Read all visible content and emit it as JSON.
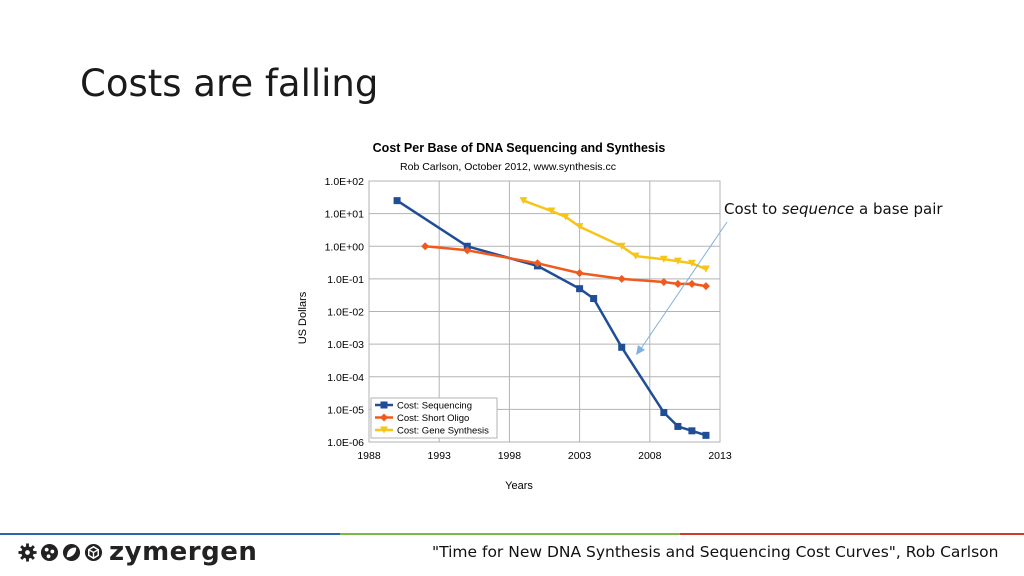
{
  "slide": {
    "title": "Costs are falling",
    "callout": {
      "prefix": "Cost to ",
      "emphasis": "sequence",
      "suffix": " a base pair"
    },
    "citation": "\"Time for New DNA Synthesis and Sequencing Cost Curves\", Rob Carlson",
    "logo": {
      "text": "zymergen",
      "icons": [
        "gear-icon",
        "molecule-icon",
        "leaf-icon",
        "cube-icon"
      ]
    },
    "footer_colors": [
      "#2a66b0",
      "#7ab648",
      "#d23a2a"
    ]
  },
  "chart_data": {
    "type": "line",
    "title": "Cost Per Base of DNA Sequencing and Synthesis",
    "subtitle": "Rob Carlson, October 2012, www.synthesis.cc",
    "xlabel": "Years",
    "ylabel": "US Dollars",
    "xlim": [
      1988,
      2013
    ],
    "xticks": [
      "1988",
      "1993",
      "1998",
      "2003",
      "2008",
      "2013"
    ],
    "yscale": "log",
    "ylim": [
      1e-06,
      100
    ],
    "yticks": [
      "1.0E+02",
      "1.0E+01",
      "1.0E+00",
      "1.0E-01",
      "1.0E-02",
      "1.0E-03",
      "1.0E-04",
      "1.0E-05",
      "1.0E-06"
    ],
    "grid": true,
    "legend": "bottom-left",
    "series": [
      {
        "name": "Cost: Sequencing",
        "color": "#1f4e96",
        "marker": "square",
        "x": [
          1990,
          1995,
          2000,
          2003,
          2004,
          2006,
          2009,
          2010,
          2011,
          2012
        ],
        "y": [
          25,
          1,
          0.25,
          0.05,
          0.025,
          0.0008,
          8e-06,
          3e-06,
          2.2e-06,
          1.6e-06
        ]
      },
      {
        "name": "Cost: Short Oligo",
        "color": "#f05a1e",
        "marker": "diamond",
        "x": [
          1992,
          1995,
          2000,
          2003,
          2006,
          2009,
          2010,
          2011,
          2012
        ],
        "y": [
          1,
          0.75,
          0.3,
          0.15,
          0.1,
          0.08,
          0.07,
          0.07,
          0.06
        ]
      },
      {
        "name": "Cost: Gene Synthesis",
        "color": "#f5c518",
        "marker": "triangle-down",
        "x": [
          1999,
          2001,
          2002,
          2003,
          2006,
          2007,
          2009,
          2010,
          2011,
          2012
        ],
        "y": [
          25,
          12,
          8,
          4,
          1,
          0.5,
          0.4,
          0.35,
          0.3,
          0.2
        ]
      }
    ]
  }
}
